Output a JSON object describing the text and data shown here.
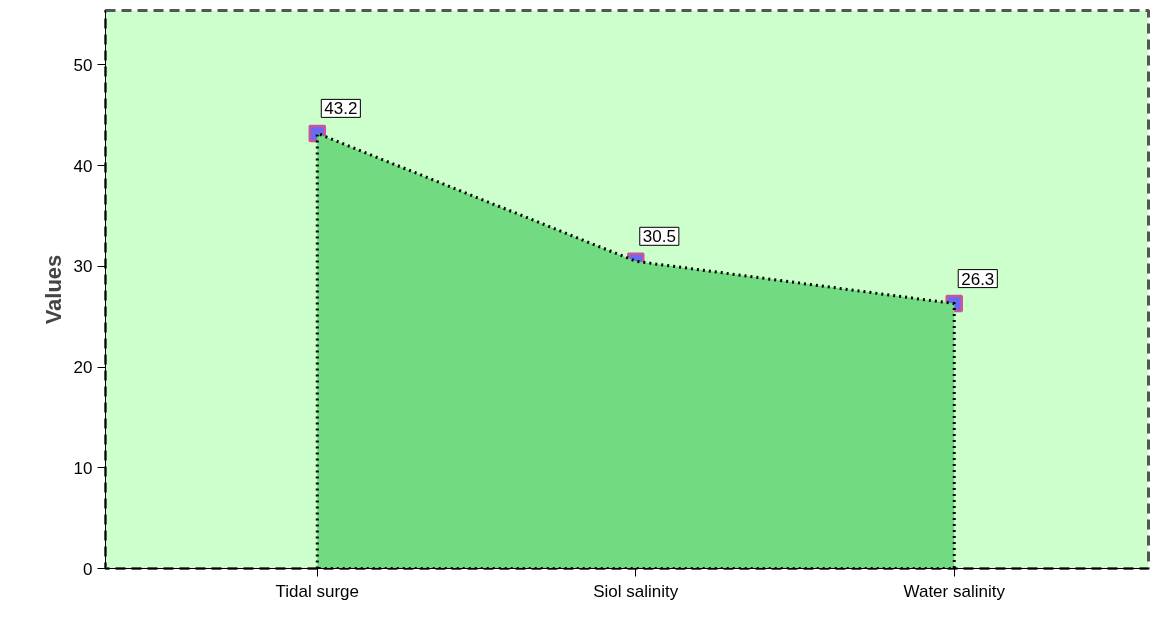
{
  "chart_data": {
    "type": "area",
    "ylabel": "Values",
    "categories": [
      "Tidal surge",
      "Siol salinity",
      "Water salinity"
    ],
    "series": [
      {
        "color": "#72db82",
        "values": [
          43.2,
          30.5,
          26.3
        ]
      }
    ],
    "ylim": [
      0,
      55.4
    ],
    "yticks": [
      0,
      10,
      20,
      30,
      40,
      50
    ],
    "grid": false,
    "marker": "square",
    "line_style": "dotted",
    "data_labels": true
  }
}
